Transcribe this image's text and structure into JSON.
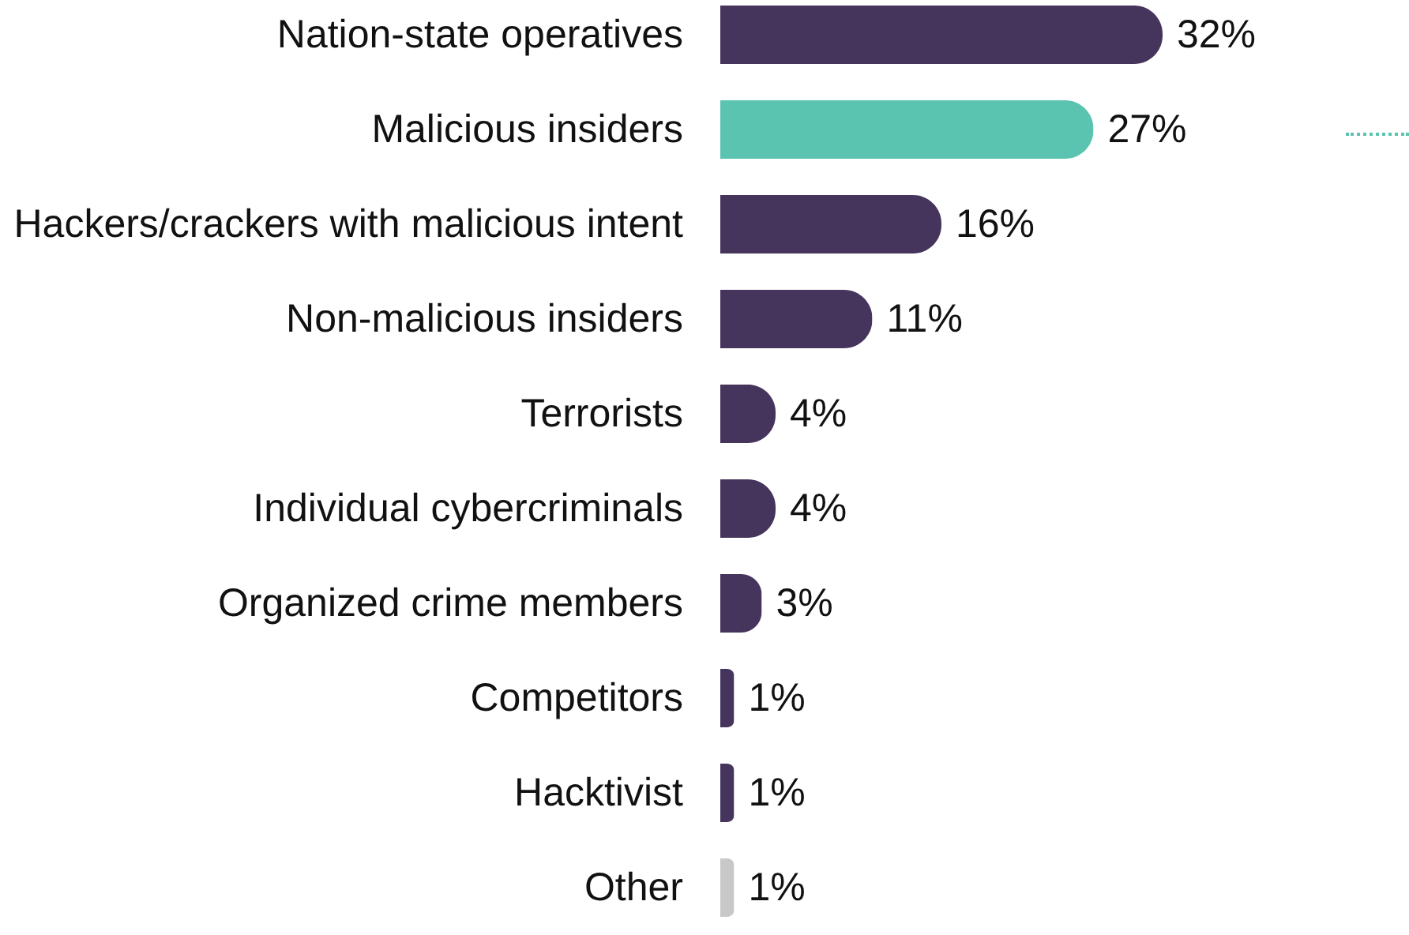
{
  "chart_data": {
    "type": "bar",
    "orientation": "horizontal",
    "categories": [
      "Nation-state operatives",
      "Malicious insiders",
      "Hackers/crackers with malicious intent",
      "Non-malicious insiders",
      "Terrorists",
      "Individual cybercriminals",
      "Organized crime members",
      "Competitors",
      "Hacktivist",
      "Other"
    ],
    "values": [
      32,
      27,
      16,
      11,
      4,
      4,
      3,
      1,
      1,
      1
    ],
    "colors": [
      "#45345b",
      "#5bc4b0",
      "#45345b",
      "#45345b",
      "#45345b",
      "#45345b",
      "#45345b",
      "#45345b",
      "#45345b",
      "#c8c8c8"
    ],
    "value_labels": [
      "32%",
      "27%",
      "16%",
      "11%",
      "4%",
      "4%",
      "3%",
      "1%",
      "1%",
      "1%"
    ],
    "grid": false,
    "legend": false
  }
}
